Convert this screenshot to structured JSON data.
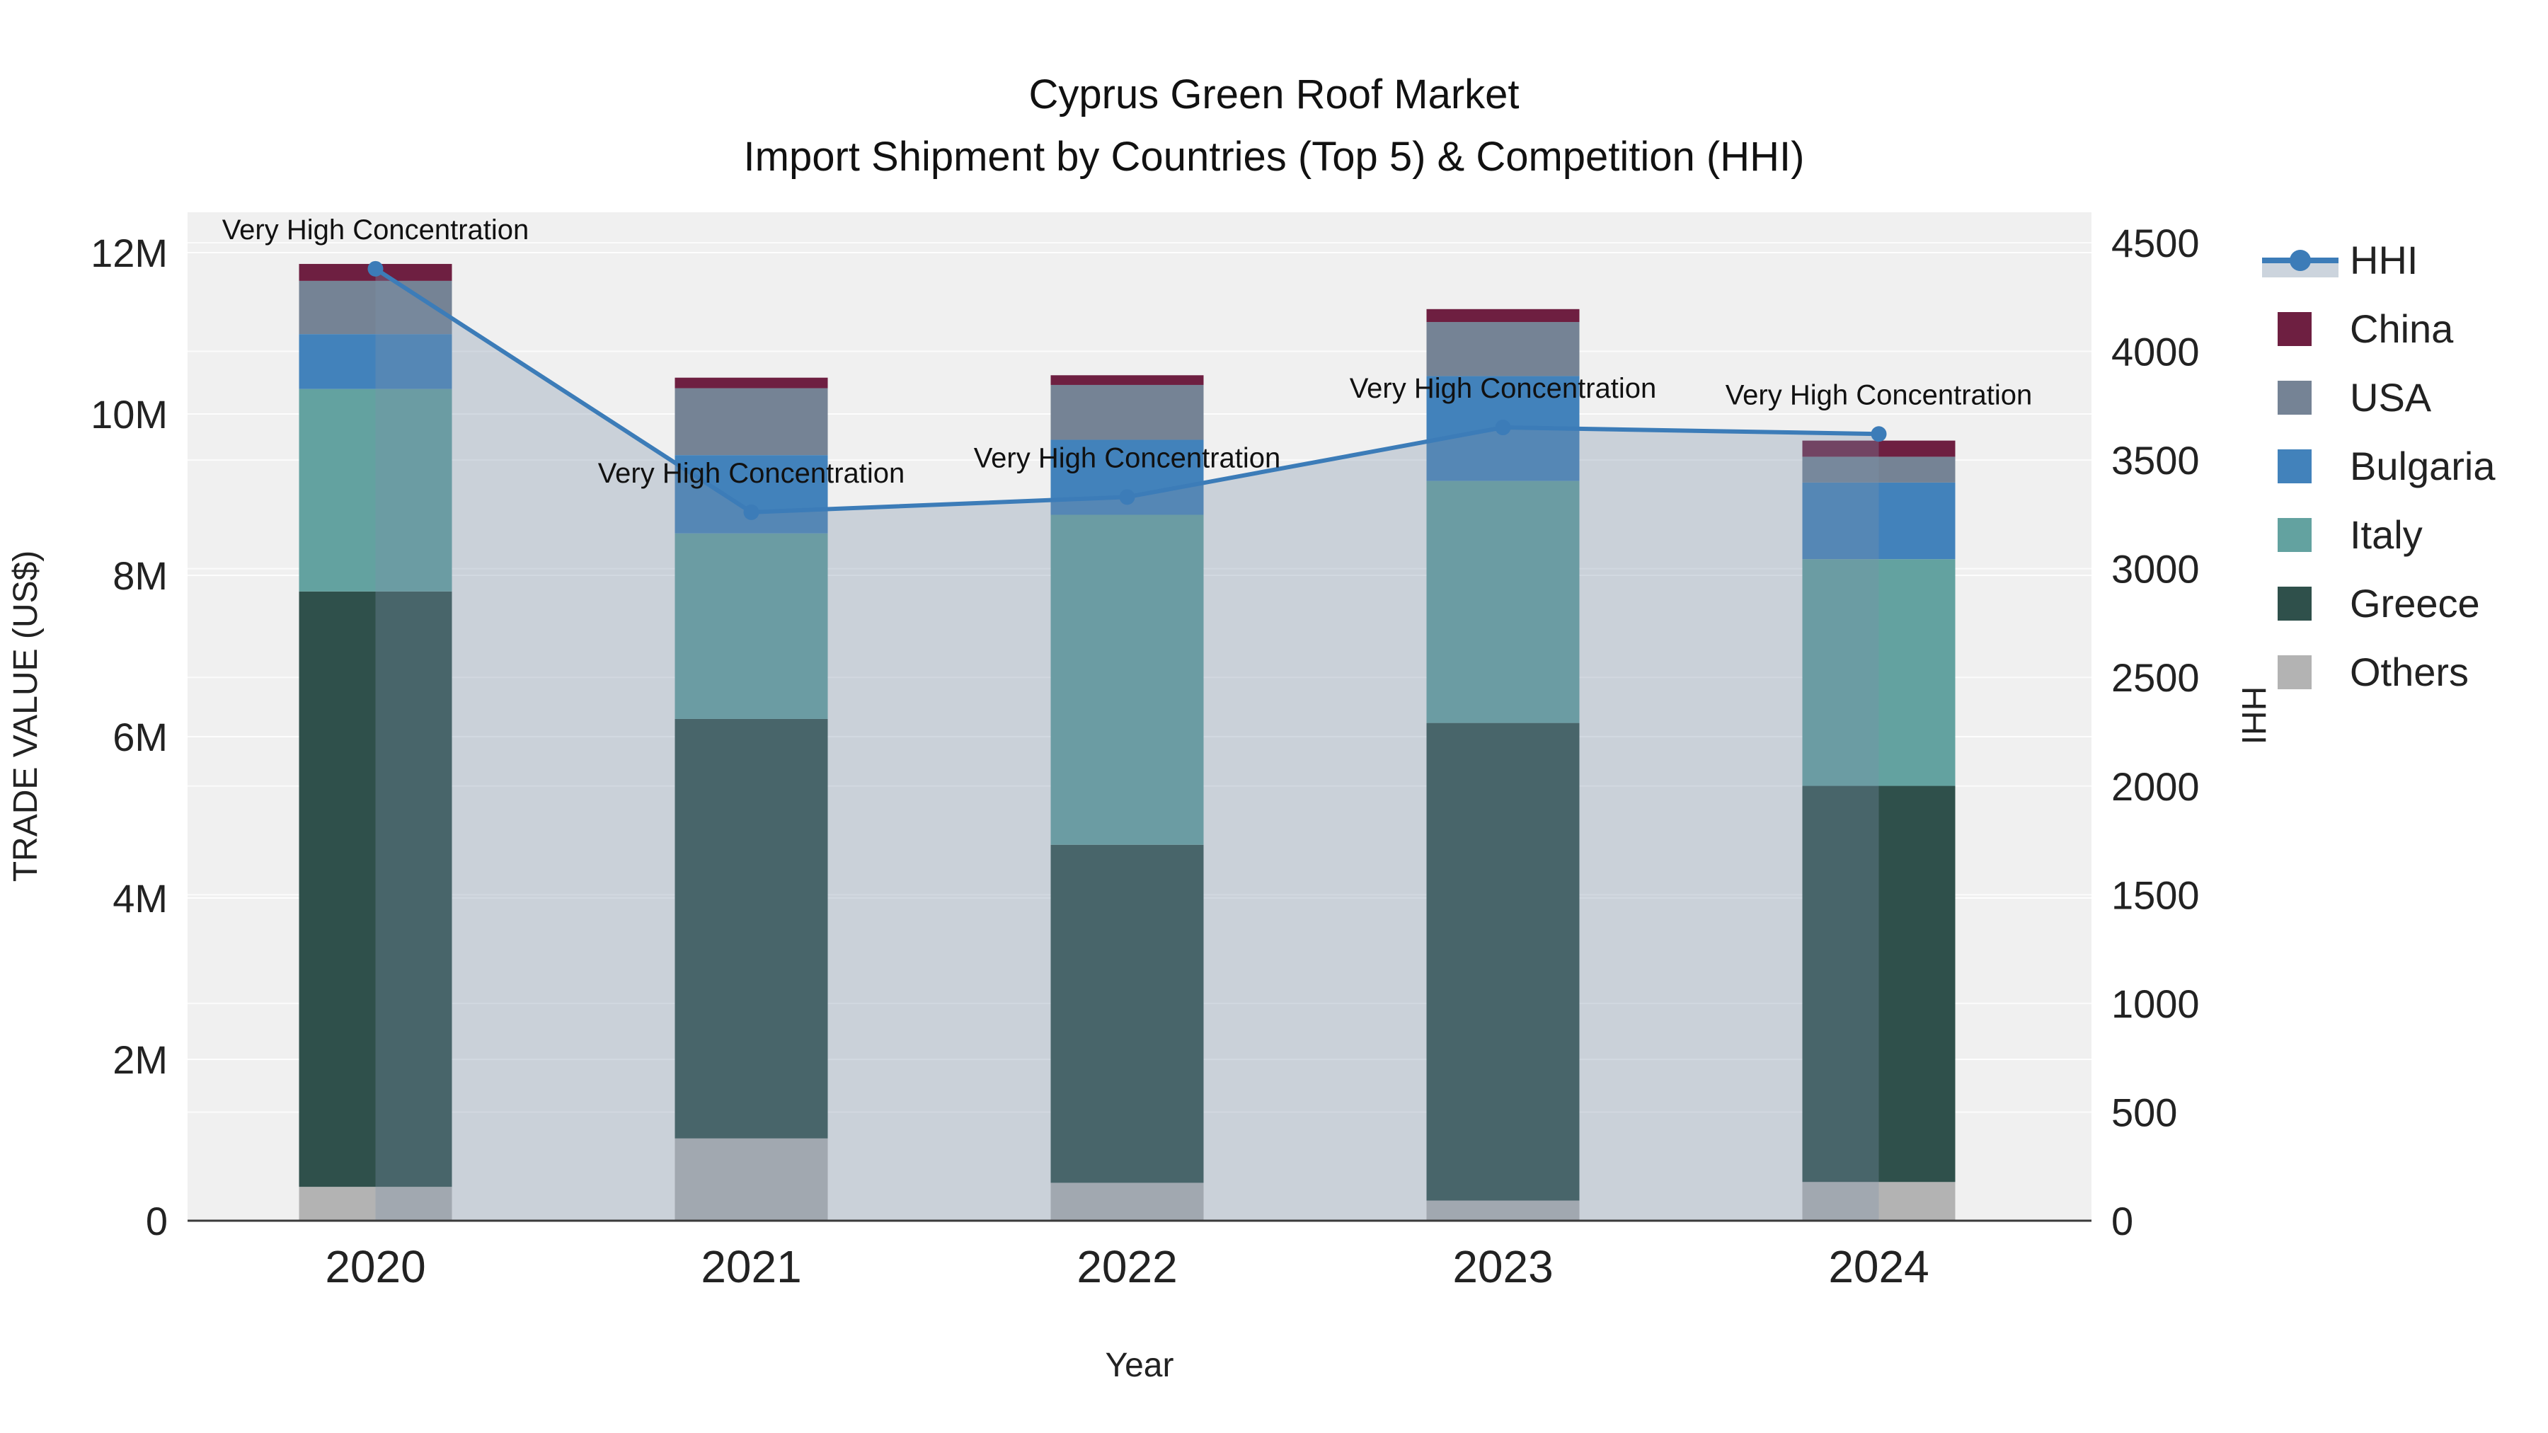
{
  "title": {
    "line1": "Cyprus Green Roof Market",
    "line2": "Import Shipment by Countries (Top 5) & Competition (HHI)"
  },
  "axes": {
    "x_title": "Year",
    "y_left_title": "TRADE VALUE (US$)",
    "y_right_title": "HHI",
    "y_left_ticks": [
      {
        "value": 0,
        "label": "0"
      },
      {
        "value": 2000000,
        "label": "2M"
      },
      {
        "value": 4000000,
        "label": "4M"
      },
      {
        "value": 6000000,
        "label": "6M"
      },
      {
        "value": 8000000,
        "label": "8M"
      },
      {
        "value": 10000000,
        "label": "10M"
      },
      {
        "value": 12000000,
        "label": "12M"
      }
    ],
    "y_right_ticks": [
      {
        "value": 0,
        "label": "0"
      },
      {
        "value": 500,
        "label": "500"
      },
      {
        "value": 1000,
        "label": "1000"
      },
      {
        "value": 1500,
        "label": "1500"
      },
      {
        "value": 2000,
        "label": "2000"
      },
      {
        "value": 2500,
        "label": "2500"
      },
      {
        "value": 3000,
        "label": "3000"
      },
      {
        "value": 3500,
        "label": "3500"
      },
      {
        "value": 4000,
        "label": "4000"
      },
      {
        "value": 4500,
        "label": "4500"
      }
    ],
    "y_left_range": [
      0,
      12500000
    ],
    "y_right_range": [
      0,
      4640
    ]
  },
  "legend": [
    {
      "label": "HHI",
      "type": "line",
      "color": "#3c7cb8",
      "fill": "#ccd4dd"
    },
    {
      "label": "China",
      "type": "swatch",
      "color": "#6e1f41"
    },
    {
      "label": "USA",
      "type": "swatch",
      "color": "#758395"
    },
    {
      "label": "Bulgaria",
      "type": "swatch",
      "color": "#4282bb"
    },
    {
      "label": "Italy",
      "type": "swatch",
      "color": "#63a2a0"
    },
    {
      "label": "Greece",
      "type": "swatch",
      "color": "#2f504b"
    },
    {
      "label": "Others",
      "type": "swatch",
      "color": "#b3b3b3"
    }
  ],
  "chart_data": {
    "type": "bar+line",
    "categories": [
      "2020",
      "2021",
      "2022",
      "2023",
      "2024"
    ],
    "bar_unit": "US$",
    "bar_stack_bottom_to_top": [
      "Others",
      "Greece",
      "Italy",
      "Bulgaria",
      "USA",
      "China"
    ],
    "series": [
      {
        "name": "Others",
        "color": "#b3b3b3",
        "values": [
          420000,
          1020000,
          470000,
          250000,
          480000
        ]
      },
      {
        "name": "Greece",
        "color": "#2f504b",
        "values": [
          7380000,
          5200000,
          4190000,
          5920000,
          4910000
        ]
      },
      {
        "name": "Italy",
        "color": "#63a2a0",
        "values": [
          2510000,
          2300000,
          4090000,
          3000000,
          2810000
        ]
      },
      {
        "name": "Bulgaria",
        "color": "#4282bb",
        "values": [
          680000,
          970000,
          930000,
          1300000,
          950000
        ]
      },
      {
        "name": "USA",
        "color": "#758395",
        "values": [
          660000,
          830000,
          680000,
          670000,
          320000
        ]
      },
      {
        "name": "China",
        "color": "#6e1f41",
        "values": [
          210000,
          130000,
          120000,
          160000,
          200000
        ]
      }
    ],
    "bar_totals": [
      11860000,
      10450000,
      10480000,
      11300000,
      9670000
    ],
    "line_series": {
      "name": "HHI",
      "values": [
        4380,
        3260,
        3330,
        3650,
        3620
      ],
      "color": "#3c7cb8",
      "area_fill": "rgba(125,145,170,0.33)",
      "axis": "right"
    },
    "annotations": [
      {
        "x": "2020",
        "text": "Very High Concentration"
      },
      {
        "x": "2021",
        "text": "Very High Concentration"
      },
      {
        "x": "2022",
        "text": "Very High Concentration"
      },
      {
        "x": "2023",
        "text": "Very High Concentration"
      },
      {
        "x": "2024",
        "text": "Very High Concentration"
      }
    ],
    "plot_background": "#f0f0f0",
    "grid_color": "#ffffff",
    "legend_position": "right"
  }
}
